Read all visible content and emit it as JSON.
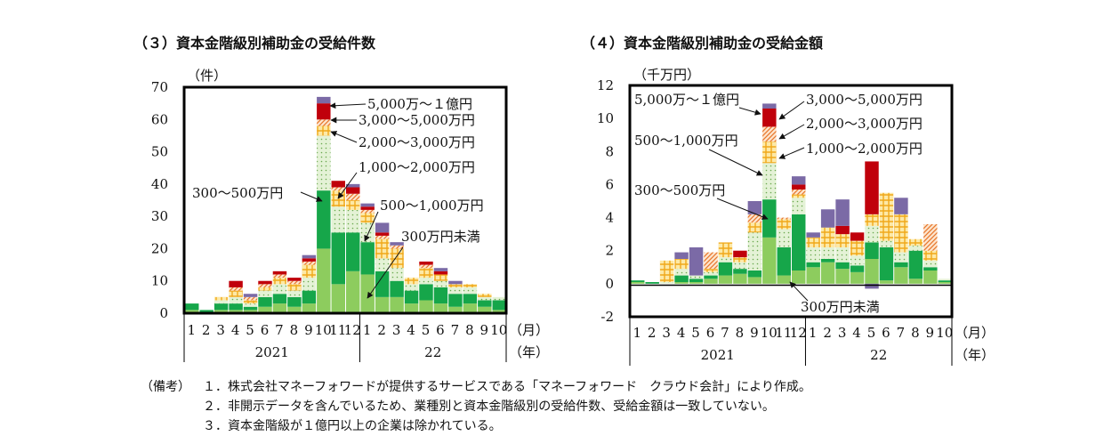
{
  "chart_data": [
    {
      "type": "bar",
      "stacked": true,
      "title": "（３）資本金階級別補助金の受給件数",
      "ylabel": "（件）",
      "xlabel": "（月）",
      "year_label": "（年）",
      "ylim": [
        0,
        70
      ],
      "yticks": [
        0,
        10,
        20,
        30,
        40,
        50,
        60,
        70
      ],
      "categories": [
        "1",
        "2",
        "3",
        "4",
        "5",
        "6",
        "7",
        "8",
        "9",
        "10",
        "11",
        "12",
        "1",
        "2",
        "3",
        "4",
        "5",
        "6",
        "7",
        "8",
        "9",
        "10"
      ],
      "year_groups": [
        {
          "label": "2021",
          "count": 12
        },
        {
          "label": "22",
          "count": 10
        }
      ],
      "series": [
        {
          "name": "300万円未満",
          "color": "#8dcc5e",
          "values": [
            1,
            0,
            1,
            1,
            1,
            2,
            3,
            2,
            3,
            20,
            9,
            13,
            12,
            5,
            5,
            3,
            4,
            3,
            2,
            3,
            2,
            1
          ]
        },
        {
          "name": "300〜500万円",
          "color": "#16a64a",
          "values": [
            2,
            1,
            2,
            2,
            1,
            3,
            3,
            3,
            4,
            18,
            16,
            12,
            10,
            8,
            5,
            4,
            5,
            5,
            4,
            3,
            2,
            3
          ]
        },
        {
          "name": "500〜1,000万円",
          "color": "#e6f2d8",
          "values": [
            0,
            0,
            1,
            2,
            1,
            2,
            3,
            2,
            4,
            17,
            8,
            7,
            6,
            4,
            4,
            2,
            2,
            2,
            2,
            2,
            1,
            1
          ]
        },
        {
          "name": "1,000〜2,000万円",
          "color": "#f7c43a",
          "values": [
            0,
            0,
            1,
            2,
            1,
            1,
            2,
            2,
            4,
            3,
            5,
            3,
            3,
            6,
            6,
            2,
            3,
            2,
            1,
            1,
            1,
            0
          ]
        },
        {
          "name": "2,000〜3,000万円",
          "color": "#f3a15e",
          "values": [
            0,
            0,
            0,
            1,
            1,
            1,
            1,
            1,
            1,
            2,
            1,
            2,
            1,
            1,
            1,
            0,
            1,
            0,
            0,
            0,
            0,
            0
          ]
        },
        {
          "name": "3,000〜5,000万円",
          "color": "#c0000b",
          "values": [
            0,
            0,
            0,
            2,
            0,
            1,
            1,
            1,
            1,
            5,
            2,
            2,
            1,
            1,
            0,
            0,
            1,
            1,
            0,
            0,
            0,
            0
          ]
        },
        {
          "name": "5,000万〜１億円",
          "color": "#7b6aa6",
          "values": [
            0,
            0,
            0,
            0,
            1,
            0,
            0,
            0,
            1,
            2,
            0,
            1,
            1,
            3,
            1,
            0,
            0,
            1,
            1,
            0,
            0,
            0
          ]
        }
      ]
    },
    {
      "type": "bar",
      "stacked": true,
      "title": "（４）資本金階級別補助金の受給金額",
      "ylabel": "（千万円）",
      "xlabel": "（月）",
      "year_label": "（年）",
      "ylim": [
        -2,
        12
      ],
      "yticks": [
        -2,
        0,
        2,
        4,
        6,
        8,
        10,
        12
      ],
      "categories": [
        "1",
        "2",
        "3",
        "4",
        "5",
        "6",
        "7",
        "8",
        "9",
        "10",
        "11",
        "12",
        "1",
        "2",
        "3",
        "4",
        "5",
        "6",
        "7",
        "8",
        "9",
        "10"
      ],
      "year_groups": [
        {
          "label": "2021",
          "count": 12
        },
        {
          "label": "22",
          "count": 10
        }
      ],
      "series": [
        {
          "name": "300万円未満",
          "color": "#8dcc5e",
          "values": [
            0.1,
            0,
            0,
            0.1,
            0.1,
            0.3,
            0.5,
            0.6,
            0.4,
            2.8,
            0.5,
            0.8,
            1.0,
            1.3,
            0.9,
            0.7,
            1.5,
            0.2,
            1.0,
            0.3,
            0.8,
            0.1
          ]
        },
        {
          "name": "300〜500万円",
          "color": "#16a64a",
          "values": [
            0.1,
            0.1,
            0,
            0.4,
            0.2,
            0.2,
            0.8,
            0.3,
            0.4,
            2.3,
            1.7,
            3.4,
            0.3,
            0.2,
            0.4,
            0.4,
            1.0,
            2.0,
            0.3,
            1.7,
            0.2,
            0.1
          ]
        },
        {
          "name": "500〜1,000万円",
          "color": "#e6f2d8",
          "values": [
            0,
            0,
            0.1,
            0.4,
            0.2,
            0.2,
            0.3,
            0.4,
            2.3,
            2.2,
            1.1,
            1.0,
            0.9,
            0.7,
            0.9,
            0.6,
            1.0,
            0.4,
            0.6,
            0.3,
            0.4,
            0.1
          ]
        },
        {
          "name": "1,000〜2,000万円",
          "color": "#f7c43a",
          "values": [
            0,
            0,
            1.3,
            0.6,
            0,
            0.2,
            0.9,
            0.3,
            0.6,
            1.3,
            0.6,
            0.2,
            0.6,
            1.2,
            0.8,
            0.9,
            0.7,
            2.9,
            2.3,
            0.4,
            0.6,
            0
          ]
        },
        {
          "name": "2,000〜3,000万円",
          "color": "#f3a15e",
          "values": [
            0,
            0,
            0,
            0,
            0,
            1.0,
            0,
            0,
            0.5,
            0.9,
            0.1,
            0.3,
            0,
            0,
            0,
            0,
            0,
            0,
            0,
            0,
            1.6,
            0
          ]
        },
        {
          "name": "3,000〜5,000万円",
          "color": "#c0000b",
          "values": [
            0,
            0,
            0,
            0,
            0,
            0,
            0,
            0.4,
            0,
            1.1,
            0,
            0.3,
            0,
            0,
            0.5,
            0.5,
            3.2,
            0,
            0,
            0,
            0,
            0
          ]
        },
        {
          "name": "5,000万〜１億円",
          "color": "#7b6aa6",
          "values": [
            0,
            0,
            0,
            0.4,
            1.7,
            0,
            0,
            0,
            0.8,
            0.3,
            0,
            0.5,
            0.3,
            1.1,
            1.6,
            0,
            0,
            0,
            1.0,
            0,
            0,
            0
          ]
        }
      ],
      "negative": {
        "series": "300〜500万円",
        "month_index": 16,
        "value": -0.3
      }
    }
  ],
  "chart1_labels": {
    "l_5000": "5,000万〜１億円",
    "l_3000": "3,000〜5,000万円",
    "l_2000": "2,000〜3,000万円",
    "l_1000": "1,000〜2,000万円",
    "l_300_500": "300〜500万円",
    "l_500_1000": "500〜1,000万円",
    "l_300": "300万円未満"
  },
  "chart2_labels": {
    "l_5000": "5,000万〜１億円",
    "l_3000": "3,000〜5,000万円",
    "l_2000": "2,000〜3,000万円",
    "l_500_1000": "500〜1,000万円",
    "l_1000": "1,000〜2,000万円",
    "l_300_500": "300〜500万円",
    "l_300": "300万円未満"
  },
  "notes": {
    "label": "（備考）",
    "items": [
      "１．株式会社マネーフォワードが提供するサービスである「マネーフォワード　クラウド会計」により作成。",
      "２．非開示データを含んでいるため、業種別と資本金階級別の受給件数、受給金額は一致していない。",
      "３．資本金階級が１億円以上の企業は除かれている。"
    ]
  }
}
